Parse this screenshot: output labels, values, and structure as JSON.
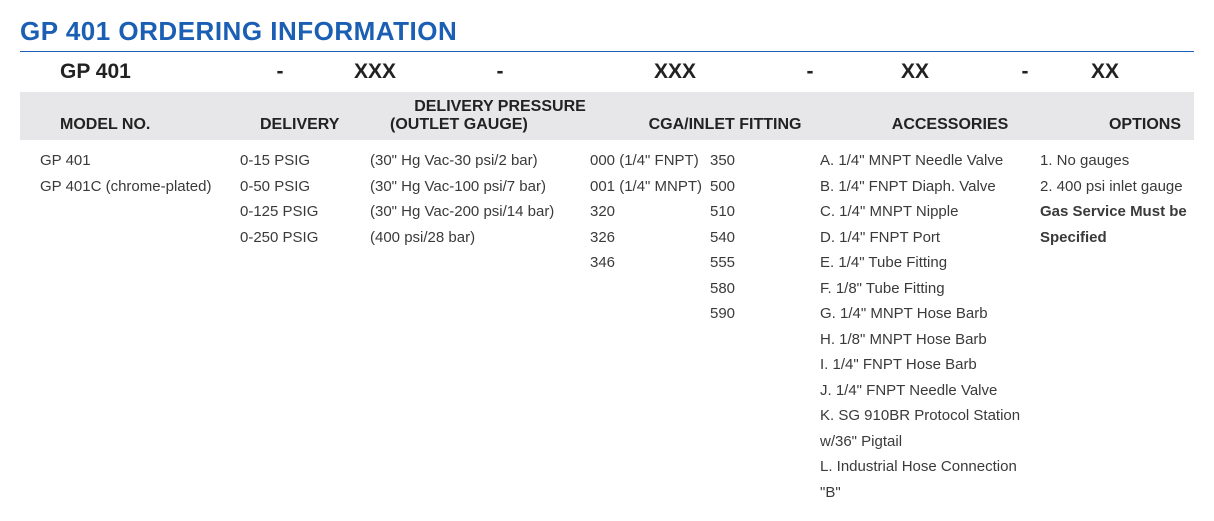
{
  "colors": {
    "heading": "#1a5fb4",
    "text": "#3a3a3a",
    "band_bg": "#e7e7e9",
    "border": "#1a5fb4",
    "bg": "#ffffff"
  },
  "title": "GP 401 ORDERING INFORMATION",
  "code_line": {
    "lead": "GP 401",
    "sep1": "-",
    "p1": "XXX",
    "sep2": "-",
    "p2": "XXX",
    "sep3": "-",
    "p3": "XX",
    "sep4": "-",
    "p4": "XX"
  },
  "headers": {
    "model": "MODEL NO.",
    "delivery": "DELIVERY",
    "pressure_top": "DELIVERY PRESSURE",
    "pressure_bot": "(OUTLET GAUGE)",
    "cga": "CGA/INLET FITTING",
    "accessories": "ACCESSORIES",
    "options": "OPTIONS"
  },
  "model_no": [
    "GP 401",
    "GP 401C (chrome-plated)"
  ],
  "delivery": [
    "0-15 PSIG",
    "0-50 PSIG",
    "0-125 PSIG",
    "0-250 PSIG"
  ],
  "outlet_gauge": [
    "(30\" Hg Vac-30 psi/2 bar)",
    "(30\" Hg Vac-100 psi/7 bar)",
    "(30\" Hg Vac-200 psi/14 bar)",
    "(400 psi/28 bar)"
  ],
  "cga_left": [
    "000 (1/4\" FNPT)",
    "001 (1/4\" MNPT)",
    "320",
    "326",
    "346"
  ],
  "cga_right": [
    "350",
    "500",
    "510",
    "540",
    "555",
    "580",
    "590"
  ],
  "accessories": [
    "A. 1/4\" MNPT Needle Valve",
    "B. 1/4\" FNPT Diaph. Valve",
    "C. 1/4\" MNPT Nipple",
    "D. 1/4\" FNPT Port",
    "E. 1/4\" Tube Fitting",
    "F. 1/8\" Tube Fitting",
    "G. 1/4\" MNPT Hose Barb",
    "H. 1/8\" MNPT Hose Barb",
    "I. 1/4\" FNPT Hose Barb",
    "J. 1/4\" FNPT Needle Valve",
    "K. SG 910BR Protocol Station w/36\" Pigtail",
    "L. Industrial Hose Connection \"B\""
  ],
  "options": [
    "1. No gauges",
    "2. 400 psi inlet gauge"
  ],
  "options_note_l1": "Gas Service Must be",
  "options_note_l2": "Specified"
}
